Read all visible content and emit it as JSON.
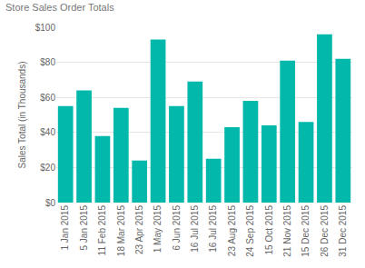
{
  "chart_data": {
    "type": "bar",
    "title": "Store Sales Order Totals",
    "y_label": "Sales Total (in Thousands)",
    "categories": [
      "1 Jan 2015",
      "5 Jan 2015",
      "11 Feb 2015",
      "18 Mar 2015",
      "23 Apr 2015",
      "1 May 2015",
      "6 Jun 2015",
      "16 Jul 2015",
      "16 Jul 2015",
      "23 Aug 2015",
      "24 Sep 2015",
      "15 Oct 2015",
      "21 Nov 2015",
      "15 Dec 2015",
      "26 Dec 2015",
      "31 Dec 2015"
    ],
    "values": [
      55,
      64,
      38,
      54,
      24,
      93,
      55,
      69,
      25,
      43,
      58,
      44,
      81,
      46,
      96,
      82
    ],
    "color": "#01b8aa",
    "ylim": [
      0,
      100
    ],
    "yticks": [
      {
        "value": 0,
        "label": "$0"
      },
      {
        "value": 20,
        "label": "$20"
      },
      {
        "value": 40,
        "label": "$40"
      },
      {
        "value": 60,
        "label": "$60"
      },
      {
        "value": 80,
        "label": "$80"
      },
      {
        "value": 100,
        "label": "$100"
      }
    ],
    "grid": true
  }
}
